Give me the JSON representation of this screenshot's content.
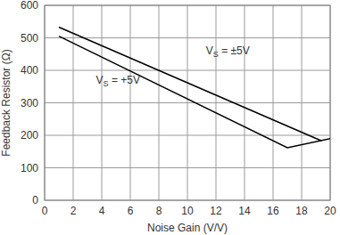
{
  "chart_data": {
    "type": "line",
    "x_label": "Noise Gain (V/V)",
    "y_label": "Feedback Resistor (Ω)",
    "series": [
      {
        "name": "VS = ±5V",
        "color": "#000000",
        "x": [
          1,
          19.4
        ],
        "values": [
          533,
          183
        ]
      },
      {
        "name": "VS = +5V",
        "color": "#000000",
        "x": [
          1,
          17,
          20
        ],
        "values": [
          505,
          162,
          190
        ]
      }
    ],
    "xlim": [
      0,
      20
    ],
    "xticks": [
      0,
      2,
      4,
      6,
      8,
      10,
      12,
      14,
      16,
      18,
      20
    ],
    "ylim": [
      0,
      600
    ],
    "yticks": [
      0,
      100,
      200,
      300,
      400,
      500,
      600
    ],
    "grid": true
  }
}
